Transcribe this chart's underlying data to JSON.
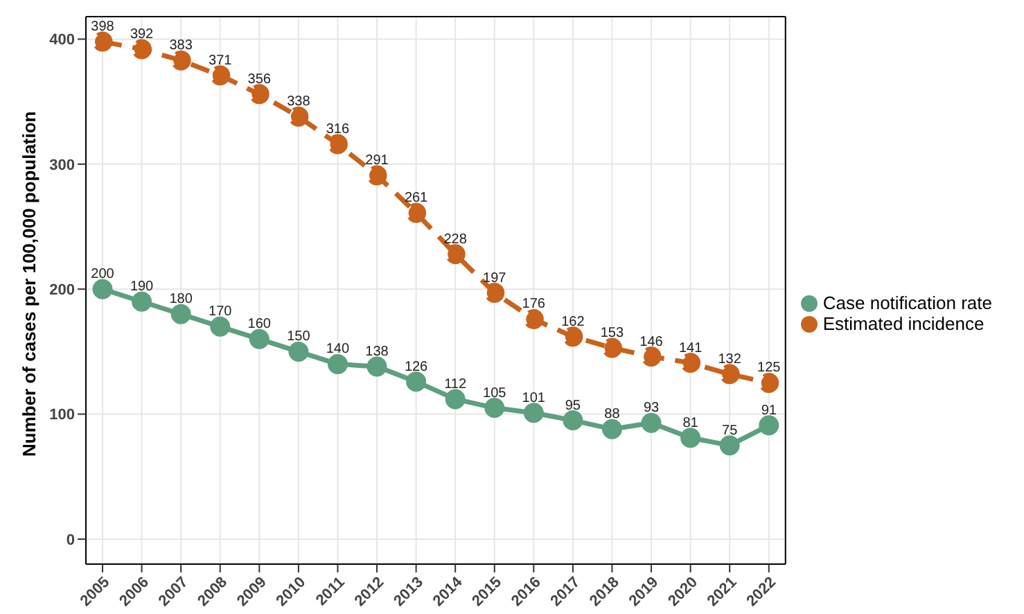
{
  "chart_data": {
    "type": "line",
    "ylabel": "Number of cases per 100,000 population",
    "categories": [
      "2005",
      "2006",
      "2007",
      "2008",
      "2009",
      "2010",
      "2011",
      "2012",
      "2013",
      "2014",
      "2015",
      "2016",
      "2017",
      "2018",
      "2019",
      "2020",
      "2021",
      "2022"
    ],
    "series": [
      {
        "name": "Case notification rate",
        "color": "#5e9f7f",
        "line_style": "solid",
        "values": [
          200,
          190,
          180,
          170,
          160,
          150,
          140,
          138,
          126,
          112,
          105,
          101,
          95,
          88,
          93,
          81,
          75,
          91
        ]
      },
      {
        "name": "Estimated incidence",
        "color": "#c9621d",
        "line_style": "dashed",
        "values": [
          398,
          392,
          383,
          371,
          356,
          338,
          316,
          291,
          261,
          228,
          197,
          176,
          162,
          153,
          146,
          141,
          132,
          125
        ]
      }
    ],
    "ylim": [
      -20,
      418
    ],
    "yticks": [
      0,
      100,
      200,
      300,
      400
    ],
    "grid": true,
    "legend": "right",
    "marker": "circle",
    "data_labels": true
  }
}
